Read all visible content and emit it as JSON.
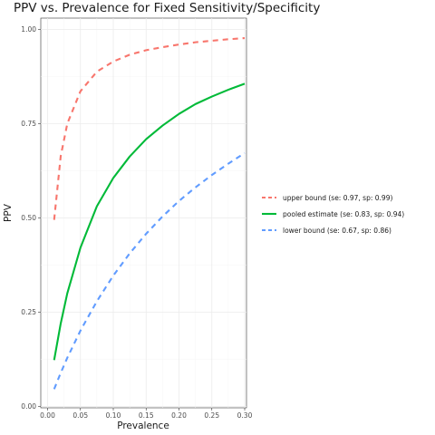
{
  "chart_data": {
    "type": "line",
    "title": "PPV vs. Prevalence for Fixed Sensitivity/Specificity",
    "xlabel": "Prevalence",
    "ylabel": "PPV",
    "xlim": [
      0,
      0.3
    ],
    "ylim": [
      0,
      1.0
    ],
    "x_ticks": [
      "0.00",
      "0.05",
      "0.10",
      "0.15",
      "0.20",
      "0.25",
      "0.30"
    ],
    "y_ticks": [
      "0.00",
      "0.25",
      "0.50",
      "0.75",
      "1.00"
    ],
    "grid": true,
    "legend_position": "right",
    "series": [
      {
        "name": "upper bound (se: 0.97, sp: 0.99)",
        "color": "#F8766D",
        "dash": "dashed",
        "x": [
          0.01,
          0.02,
          0.03,
          0.05,
          0.075,
          0.1,
          0.125,
          0.15,
          0.175,
          0.2,
          0.225,
          0.25,
          0.275,
          0.3
        ],
        "y": [
          0.495,
          0.664,
          0.75,
          0.836,
          0.888,
          0.915,
          0.933,
          0.945,
          0.953,
          0.96,
          0.966,
          0.97,
          0.974,
          0.977
        ]
      },
      {
        "name": "pooled estimate (se: 0.83, sp: 0.94)",
        "color": "#00BA38",
        "dash": "solid",
        "x": [
          0.01,
          0.02,
          0.03,
          0.05,
          0.075,
          0.1,
          0.125,
          0.15,
          0.175,
          0.2,
          0.225,
          0.25,
          0.275,
          0.3
        ],
        "y": [
          0.123,
          0.22,
          0.3,
          0.421,
          0.531,
          0.606,
          0.663,
          0.709,
          0.745,
          0.776,
          0.802,
          0.822,
          0.84,
          0.856
        ]
      },
      {
        "name": "lower bound (se: 0.67, sp: 0.86)",
        "color": "#619CFF",
        "dash": "dashed",
        "x": [
          0.01,
          0.02,
          0.03,
          0.05,
          0.075,
          0.1,
          0.125,
          0.15,
          0.175,
          0.2,
          0.225,
          0.25,
          0.275,
          0.3
        ],
        "y": [
          0.046,
          0.089,
          0.129,
          0.201,
          0.279,
          0.347,
          0.406,
          0.458,
          0.504,
          0.545,
          0.581,
          0.614,
          0.644,
          0.672
        ]
      }
    ]
  }
}
